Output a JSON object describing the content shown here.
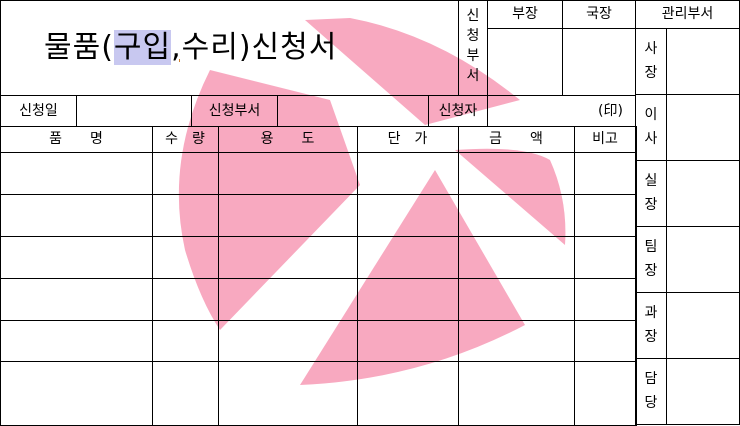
{
  "form": {
    "title": {
      "prefix": "물품(",
      "selected": "구입",
      "comma": ",",
      "rest": "수리)신청서"
    },
    "request_dept_vertical": [
      "신",
      "청",
      "부",
      "서"
    ],
    "approval_heads": [
      "부장",
      "국장"
    ],
    "management": {
      "header": "관리부서",
      "roles": [
        [
          "사",
          "장"
        ],
        [
          "이",
          "사"
        ],
        [
          "실",
          "장"
        ],
        [
          "팀",
          "장"
        ],
        [
          "과",
          "장"
        ],
        [
          "담",
          "당"
        ]
      ]
    },
    "info_row": {
      "date_label": "신청일",
      "date_value": "",
      "dept_label": "신청부서",
      "dept_value": "",
      "applicant_label": "신청자",
      "seal": "(印)"
    },
    "table": {
      "headers": [
        "품　　명",
        "수　량",
        "용　　도",
        "단　가",
        "금　　액",
        "비고"
      ],
      "rows": [
        [
          "",
          "",
          "",
          "",
          "",
          ""
        ],
        [
          "",
          "",
          "",
          "",
          "",
          ""
        ],
        [
          "",
          "",
          "",
          "",
          "",
          ""
        ],
        [
          "",
          "",
          "",
          "",
          "",
          ""
        ],
        [
          "",
          "",
          "",
          "",
          "",
          ""
        ],
        [
          "",
          "",
          "",
          "",
          "",
          ""
        ]
      ]
    },
    "watermark_color": "#f7a8c0"
  }
}
